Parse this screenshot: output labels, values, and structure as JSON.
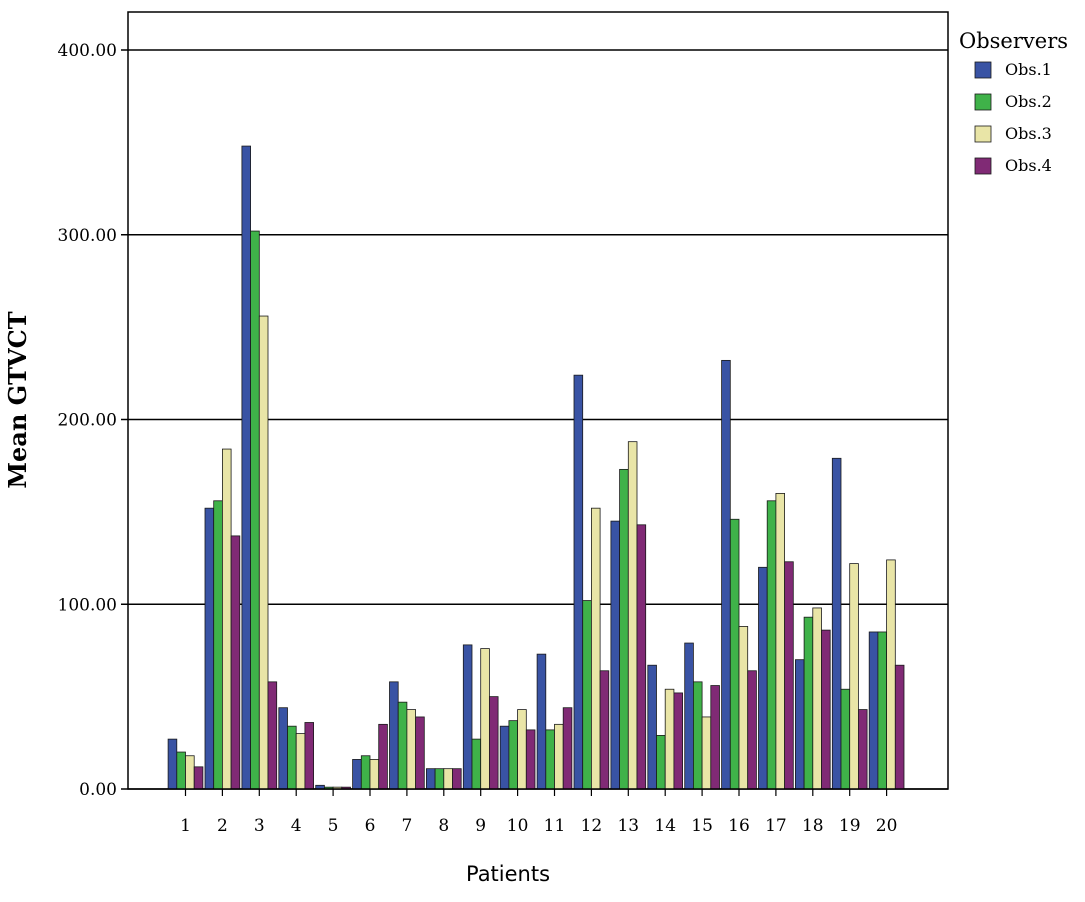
{
  "chart_data": {
    "type": "bar",
    "title": "",
    "xlabel": "Patients",
    "ylabel": "Mean GTVCT",
    "ylim": [
      0,
      430
    ],
    "yticks": [
      "0.00",
      "100.00",
      "200.00",
      "300.00",
      "400.00"
    ],
    "ytick_values": [
      0,
      100,
      200,
      300,
      400
    ],
    "grid": "horizontal",
    "legend_title": "Observers",
    "legend_position": "right",
    "categories": [
      "1",
      "2",
      "3",
      "4",
      "5",
      "6",
      "7",
      "8",
      "9",
      "10",
      "11",
      "12",
      "13",
      "14",
      "15",
      "16",
      "17",
      "18",
      "19",
      "20"
    ],
    "series": [
      {
        "name": "Obs.1",
        "color": "#3953a4",
        "values": [
          27,
          152,
          348,
          44,
          2,
          16,
          58,
          11,
          78,
          34,
          73,
          224,
          145,
          67,
          79,
          232,
          120,
          70,
          179,
          85
        ]
      },
      {
        "name": "Obs.2",
        "color": "#3fb249",
        "values": [
          20,
          156,
          302,
          34,
          1,
          18,
          47,
          11,
          27,
          37,
          32,
          102,
          173,
          29,
          58,
          146,
          156,
          93,
          54,
          85
        ]
      },
      {
        "name": "Obs.3",
        "color": "#e9e5a7",
        "values": [
          18,
          184,
          256,
          30,
          1,
          16,
          43,
          11,
          76,
          43,
          35,
          152,
          188,
          54,
          39,
          88,
          160,
          98,
          122,
          124
        ]
      },
      {
        "name": "Obs.4",
        "color": "#802a75",
        "values": [
          12,
          137,
          58,
          36,
          1,
          35,
          39,
          11,
          50,
          32,
          44,
          64,
          143,
          52,
          56,
          64,
          123,
          86,
          43,
          67
        ]
      }
    ]
  }
}
